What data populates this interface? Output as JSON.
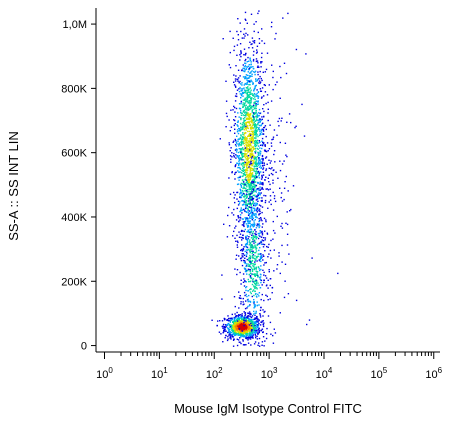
{
  "chart_data": {
    "type": "scatter",
    "title": "",
    "xlabel": "Mouse IgM Isotype Control FITC",
    "ylabel": "SS-A :: SS INT LIN",
    "x_scale": "log",
    "xlim": [
      0.7,
      1300000
    ],
    "ylim": [
      -20000,
      1050000
    ],
    "x_ticks": [
      {
        "value": 1,
        "base": "10",
        "exp": "0"
      },
      {
        "value": 10,
        "base": "10",
        "exp": "1"
      },
      {
        "value": 100,
        "base": "10",
        "exp": "2"
      },
      {
        "value": 1000,
        "base": "10",
        "exp": "3"
      },
      {
        "value": 10000,
        "base": "10",
        "exp": "4"
      },
      {
        "value": 100000,
        "base": "10",
        "exp": "5"
      },
      {
        "value": 1000000,
        "base": "10",
        "exp": "6"
      }
    ],
    "y_ticks": [
      {
        "value": 0,
        "label": "0"
      },
      {
        "value": 200000,
        "label": "200K"
      },
      {
        "value": 400000,
        "label": "400K"
      },
      {
        "value": 600000,
        "label": "600K"
      },
      {
        "value": 800000,
        "label": "800K"
      },
      {
        "value": 1000000,
        "label": "1,0M"
      }
    ],
    "grid": false,
    "color_scale": [
      "#0000e0",
      "#00a0ff",
      "#00d8a0",
      "#d8e000",
      "#ff7a00",
      "#d80000"
    ],
    "populations": [
      {
        "x_center": 320,
        "x_log_sd": 0.16,
        "y_center": 60000,
        "y_sd": 18000,
        "density": "high"
      },
      {
        "x_center": 420,
        "x_log_sd": 0.14,
        "y_center": 620000,
        "y_sd": 160000,
        "density": "medium"
      },
      {
        "x_center": 500,
        "x_log_sd": 0.12,
        "y_center": 260000,
        "y_sd": 120000,
        "density": "low"
      },
      {
        "x_center": 900,
        "x_log_sd": 0.3,
        "y_center": 500000,
        "y_sd": 300000,
        "density": "sparse"
      }
    ]
  }
}
